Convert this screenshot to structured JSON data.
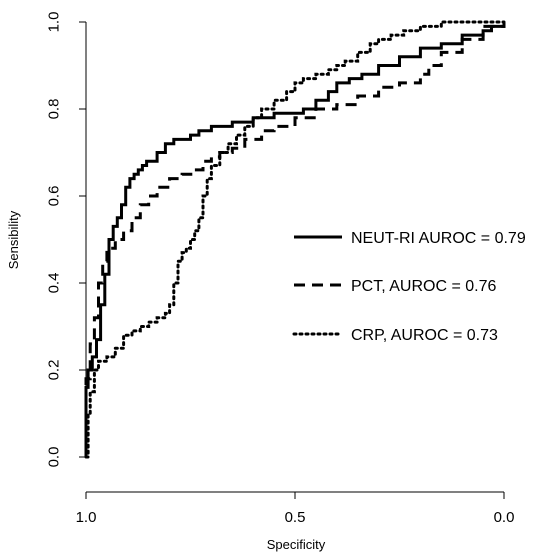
{
  "chart_data": {
    "type": "line",
    "title": "",
    "xlabel": "Specificity",
    "ylabel": "Sensibility",
    "xlim": [
      1.0,
      0.0
    ],
    "ylim": [
      0.0,
      1.0
    ],
    "x_ticks": [
      "1.0",
      "0.5",
      "0.0"
    ],
    "x_tick_values": [
      1.0,
      0.5,
      0.0
    ],
    "y_ticks": [
      "0.0",
      "0.2",
      "0.4",
      "0.6",
      "0.8",
      "1.0"
    ],
    "y_tick_values": [
      0.0,
      0.2,
      0.4,
      0.6,
      0.8,
      1.0
    ],
    "grid": false,
    "legend_position": "right",
    "series": [
      {
        "name": "NEUT-RI AUROC = 0.79",
        "line_style": "solid",
        "color": "#000000",
        "x": [
          1.0,
          1.0,
          0.995,
          0.985,
          0.975,
          0.965,
          0.955,
          0.945,
          0.935,
          0.925,
          0.915,
          0.905,
          0.895,
          0.885,
          0.875,
          0.865,
          0.855,
          0.83,
          0.81,
          0.79,
          0.77,
          0.75,
          0.73,
          0.7,
          0.65,
          0.6,
          0.55,
          0.5,
          0.48,
          0.45,
          0.42,
          0.4,
          0.37,
          0.34,
          0.3,
          0.25,
          0.2,
          0.15,
          0.1,
          0.05,
          0.03,
          0.0
        ],
        "y": [
          0.0,
          0.16,
          0.2,
          0.23,
          0.27,
          0.35,
          0.42,
          0.5,
          0.53,
          0.55,
          0.58,
          0.62,
          0.64,
          0.65,
          0.66,
          0.67,
          0.68,
          0.7,
          0.72,
          0.73,
          0.73,
          0.74,
          0.75,
          0.76,
          0.77,
          0.78,
          0.79,
          0.79,
          0.8,
          0.82,
          0.84,
          0.86,
          0.87,
          0.88,
          0.9,
          0.92,
          0.94,
          0.95,
          0.97,
          0.98,
          0.99,
          1.0
        ]
      },
      {
        "name": "PCT, AUROC = 0.76",
        "line_style": "dashed",
        "color": "#000000",
        "x": [
          1.0,
          1.0,
          0.99,
          0.98,
          0.97,
          0.96,
          0.95,
          0.93,
          0.91,
          0.89,
          0.87,
          0.85,
          0.83,
          0.8,
          0.77,
          0.74,
          0.72,
          0.7,
          0.68,
          0.65,
          0.62,
          0.58,
          0.55,
          0.5,
          0.45,
          0.4,
          0.35,
          0.3,
          0.25,
          0.2,
          0.18,
          0.15,
          0.1,
          0.05,
          0.0
        ],
        "y": [
          0.0,
          0.18,
          0.26,
          0.32,
          0.4,
          0.45,
          0.48,
          0.5,
          0.52,
          0.55,
          0.58,
          0.6,
          0.62,
          0.64,
          0.65,
          0.66,
          0.68,
          0.69,
          0.7,
          0.71,
          0.73,
          0.75,
          0.76,
          0.78,
          0.8,
          0.81,
          0.83,
          0.85,
          0.86,
          0.88,
          0.9,
          0.93,
          0.96,
          0.99,
          1.0
        ]
      },
      {
        "name": "CRP, AUROC = 0.73",
        "line_style": "dotted",
        "color": "#000000",
        "x": [
          1.0,
          0.995,
          0.99,
          0.98,
          0.97,
          0.95,
          0.93,
          0.91,
          0.89,
          0.87,
          0.85,
          0.83,
          0.81,
          0.8,
          0.79,
          0.78,
          0.77,
          0.76,
          0.75,
          0.74,
          0.73,
          0.72,
          0.71,
          0.7,
          0.68,
          0.66,
          0.64,
          0.62,
          0.6,
          0.58,
          0.55,
          0.52,
          0.5,
          0.48,
          0.45,
          0.42,
          0.4,
          0.38,
          0.35,
          0.32,
          0.3,
          0.27,
          0.24,
          0.2,
          0.15,
          0.1,
          0.05,
          0.0
        ],
        "y": [
          0.0,
          0.1,
          0.15,
          0.2,
          0.22,
          0.23,
          0.25,
          0.28,
          0.29,
          0.3,
          0.31,
          0.32,
          0.33,
          0.35,
          0.4,
          0.45,
          0.47,
          0.48,
          0.5,
          0.52,
          0.55,
          0.6,
          0.64,
          0.67,
          0.7,
          0.72,
          0.74,
          0.76,
          0.78,
          0.8,
          0.82,
          0.84,
          0.86,
          0.87,
          0.88,
          0.89,
          0.9,
          0.91,
          0.93,
          0.95,
          0.96,
          0.97,
          0.98,
          0.99,
          1.0,
          1.0,
          1.0,
          1.0
        ]
      }
    ]
  }
}
